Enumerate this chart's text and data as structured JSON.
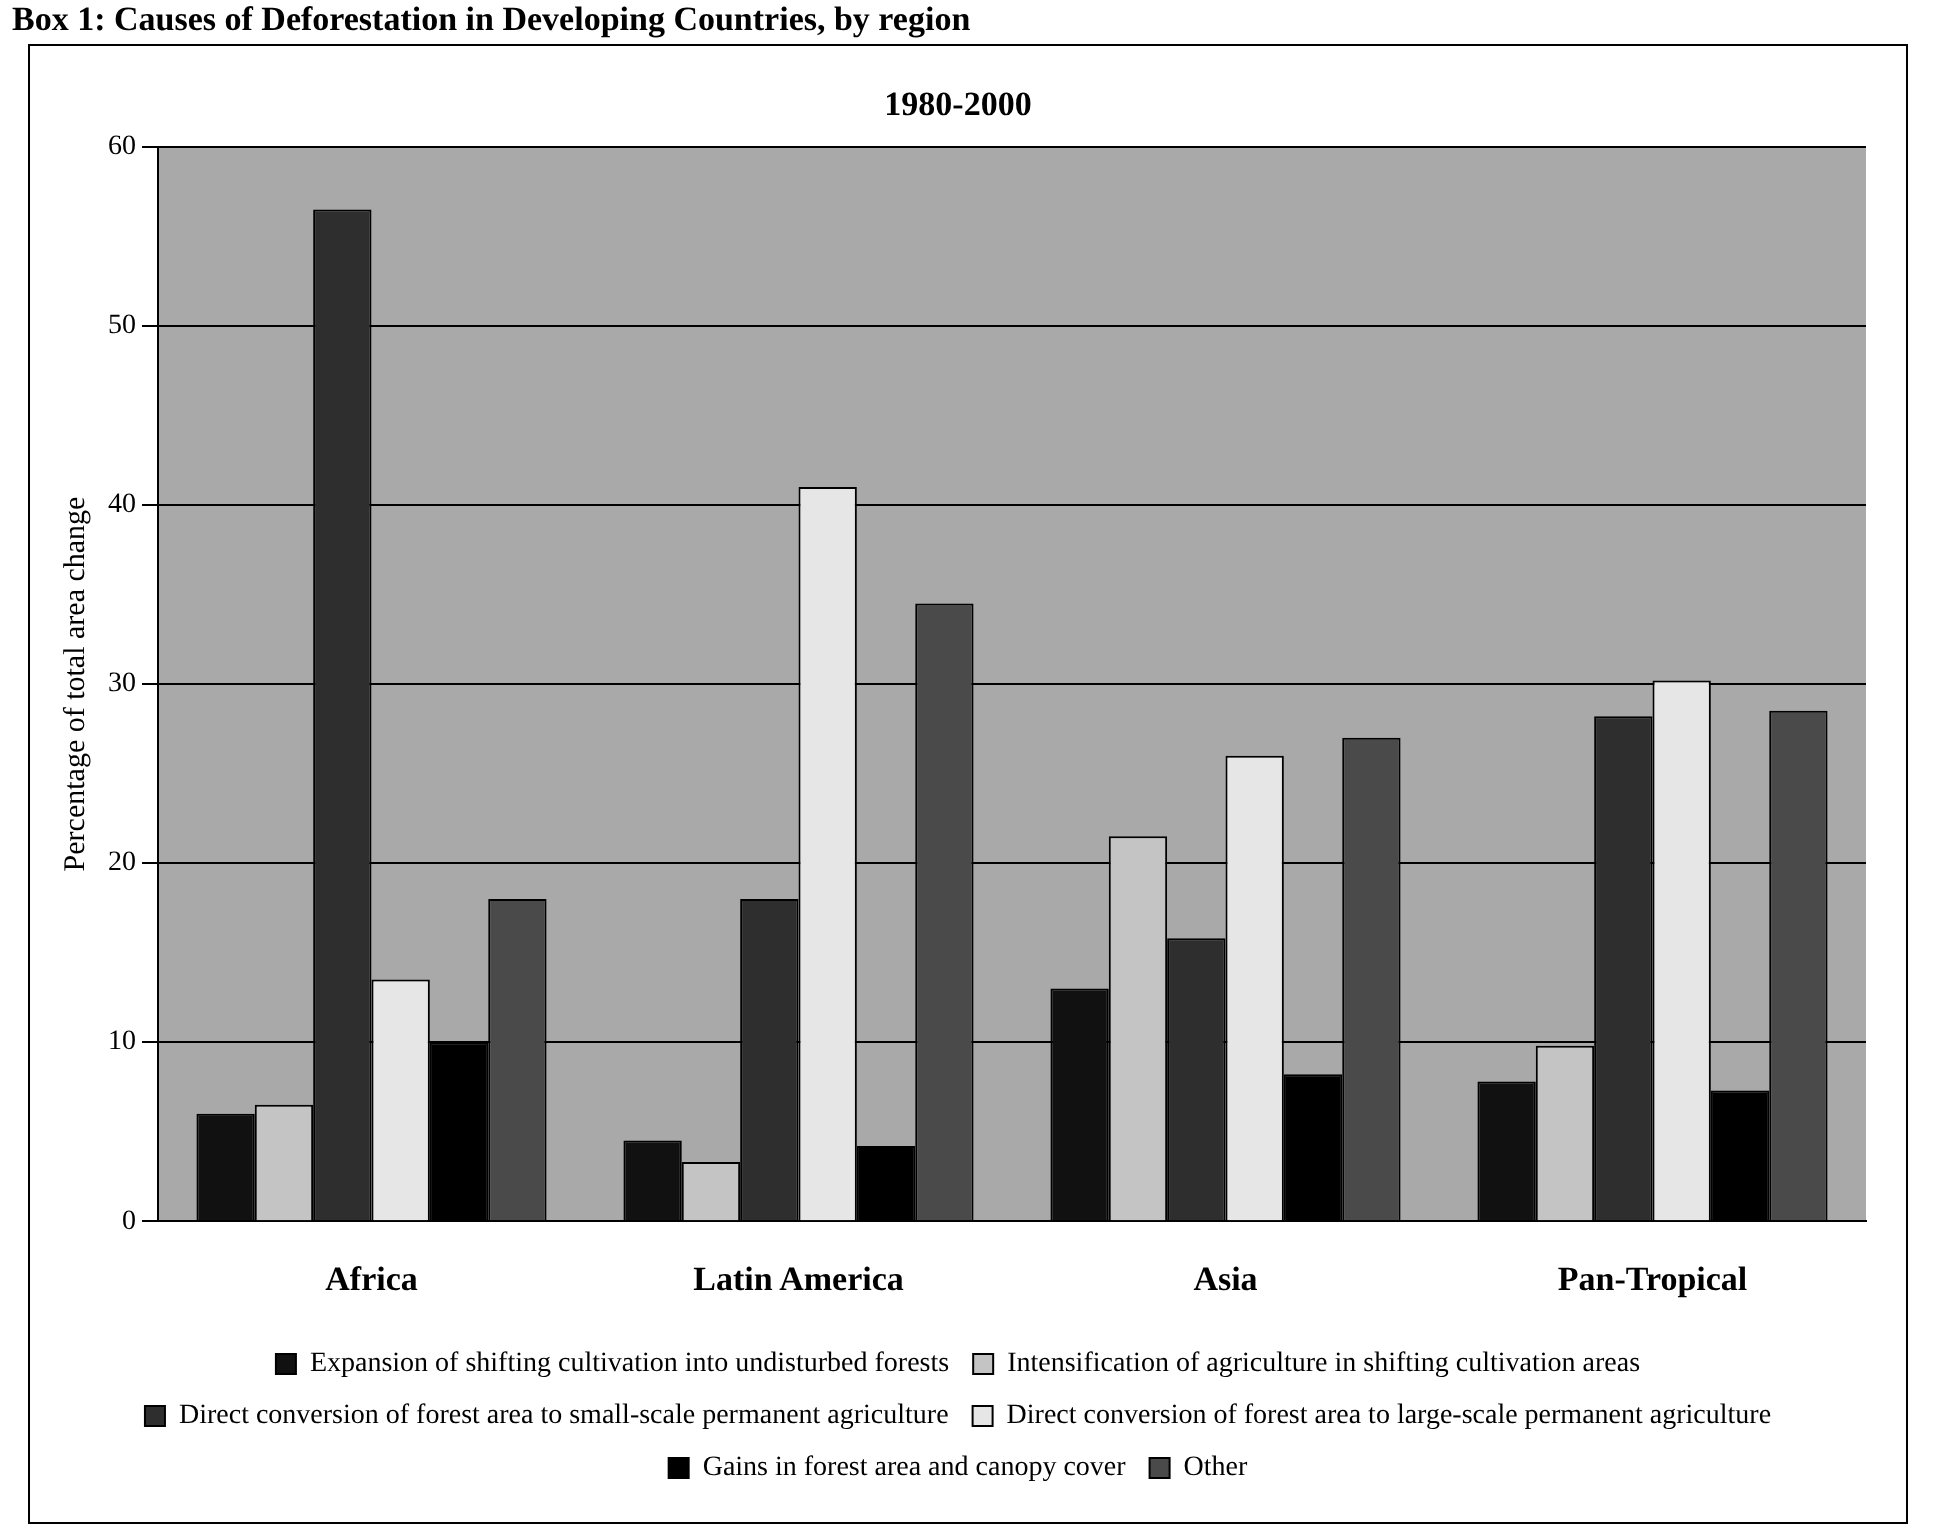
{
  "chart_data": {
    "type": "bar",
    "title": "Box 1: Causes of Deforestation in Developing Countries, by region",
    "subtitle": "1980-2000",
    "ylabel": "Percentage of total area change",
    "categories": [
      "Africa",
      "Latin America",
      "Asia",
      "Pan-Tropical"
    ],
    "series": [
      {
        "name": "Expansion of shifting cultivation into undisturbed forests",
        "color": "#111111",
        "values": [
          6,
          4.5,
          13,
          7.8
        ]
      },
      {
        "name": "Intensification of agriculture in shifting cultivation areas",
        "color": "#c4c4c4",
        "values": [
          6.5,
          3.3,
          21.5,
          9.8
        ]
      },
      {
        "name": "Direct conversion of forest area to small-scale permanent agriculture",
        "color": "#2e2e2e",
        "values": [
          56.5,
          18,
          15.8,
          28.2
        ]
      },
      {
        "name": "Direct conversion of forest area to large-scale permanent agriculture",
        "color": "#e6e6e6",
        "values": [
          13.5,
          41,
          26,
          30.2
        ]
      },
      {
        "name": "Gains in forest area and canopy cover",
        "color": "#000000",
        "values": [
          10,
          4.2,
          8.2,
          7.3
        ]
      },
      {
        "name": "Other",
        "color": "#4a4a4a",
        "values": [
          18,
          34.5,
          27,
          28.5
        ]
      }
    ],
    "ylim": [
      0,
      60
    ],
    "yticks": [
      0,
      10,
      20,
      30,
      40,
      50,
      60
    ],
    "grid": "y",
    "legend": "bottom"
  }
}
